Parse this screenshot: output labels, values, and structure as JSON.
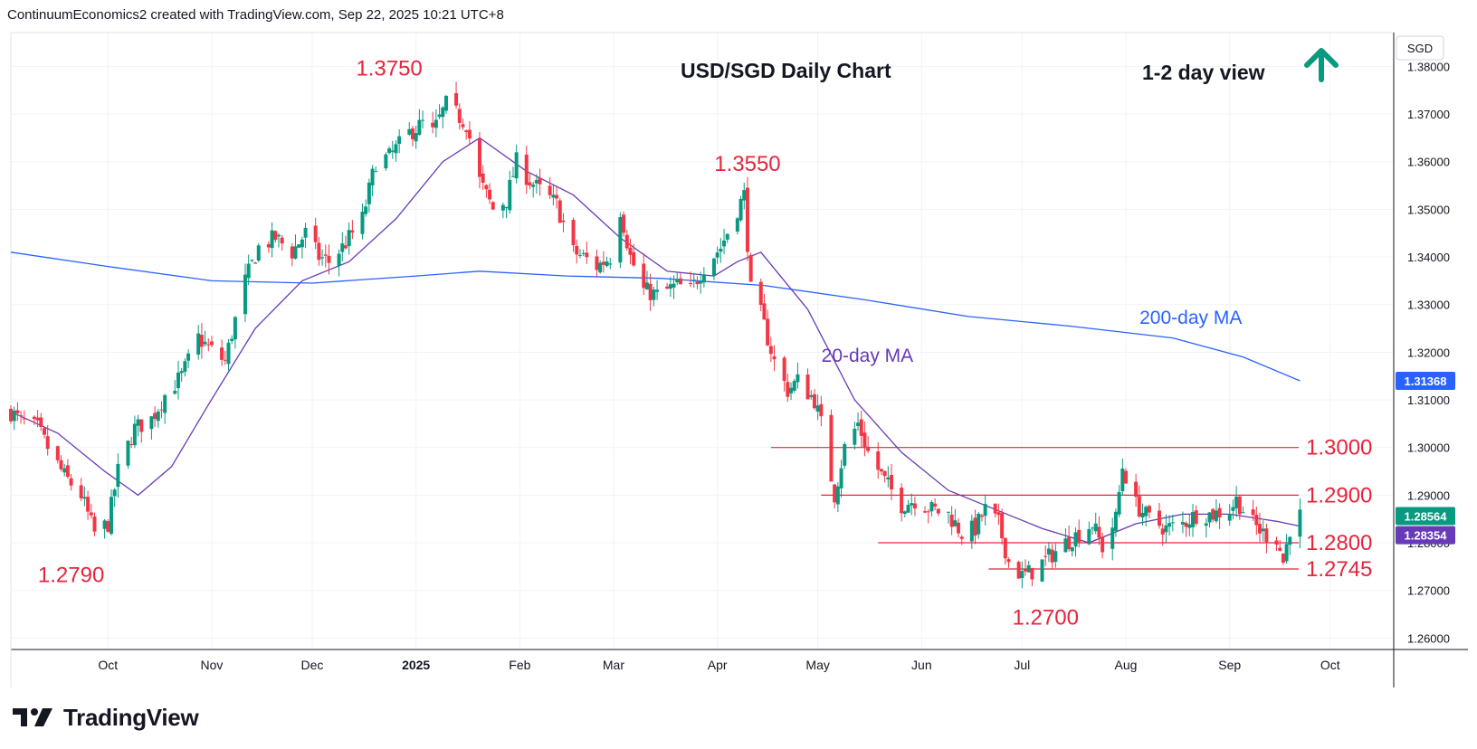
{
  "header": {
    "credit": "ContinuumEconomics2 created with TradingView.com, Sep 22, 2025 10:21 UTC+8"
  },
  "footer": {
    "brand": "TradingView"
  },
  "colors": {
    "up": "#089981",
    "down": "#f23645",
    "ma20": "#673ab7",
    "ma200": "#2962ff",
    "level": "#e8233c",
    "arrow": "#089981"
  },
  "chart_data": {
    "type": "candlestick",
    "title": "USD/SGD Daily Chart",
    "view_label": "1-2 day view",
    "view_arrow": "up-arrow",
    "currency": "SGD",
    "ylim": [
      1.2576,
      1.3871
    ],
    "y_ticks": [
      "1.38000",
      "1.37000",
      "1.36000",
      "1.35000",
      "1.34000",
      "1.33000",
      "1.32000",
      "1.31000",
      "1.30000",
      "1.29000",
      "1.28000",
      "1.27000",
      "1.26000"
    ],
    "x_ticks": [
      {
        "label": "Oct",
        "date": "2024-10-01"
      },
      {
        "label": "Nov",
        "date": "2024-11-01"
      },
      {
        "label": "Dec",
        "date": "2024-12-01"
      },
      {
        "label": "2025",
        "date": "2025-01-01",
        "bold": true
      },
      {
        "label": "Feb",
        "date": "2025-02-01"
      },
      {
        "label": "Mar",
        "date": "2025-03-01"
      },
      {
        "label": "Apr",
        "date": "2025-04-01"
      },
      {
        "label": "May",
        "date": "2025-05-01"
      },
      {
        "label": "Jun",
        "date": "2025-06-01"
      },
      {
        "label": "Jul",
        "date": "2025-07-01"
      },
      {
        "label": "Aug",
        "date": "2025-08-01"
      },
      {
        "label": "Sep",
        "date": "2025-09-01"
      },
      {
        "label": "Oct",
        "date": "2025-10-01"
      }
    ],
    "x_range": [
      "2024-09-02",
      "2025-10-20"
    ],
    "price_path": [
      [
        "2024-09-02",
        1.3075
      ],
      [
        "2024-09-05",
        1.3055
      ],
      [
        "2024-09-10",
        1.304
      ],
      [
        "2024-09-13",
        1.3
      ],
      [
        "2024-09-18",
        1.294
      ],
      [
        "2024-09-23",
        1.29
      ],
      [
        "2024-09-27",
        1.282
      ],
      [
        "2024-10-01",
        1.284
      ],
      [
        "2024-10-04",
        1.295
      ],
      [
        "2024-10-09",
        1.304
      ],
      [
        "2024-10-14",
        1.306
      ],
      [
        "2024-10-18",
        1.311
      ],
      [
        "2024-10-23",
        1.315
      ],
      [
        "2024-10-28",
        1.323
      ],
      [
        "2024-10-31",
        1.321
      ],
      [
        "2024-11-05",
        1.318
      ],
      [
        "2024-11-07",
        1.324
      ],
      [
        "2024-11-11",
        1.335
      ],
      [
        "2024-11-15",
        1.342
      ],
      [
        "2024-11-20",
        1.344
      ],
      [
        "2024-11-25",
        1.341
      ],
      [
        "2024-11-29",
        1.345
      ],
      [
        "2024-12-03",
        1.34
      ],
      [
        "2024-12-06",
        1.339
      ],
      [
        "2024-12-10",
        1.342
      ],
      [
        "2024-12-16",
        1.348
      ],
      [
        "2024-12-20",
        1.36
      ],
      [
        "2024-12-24",
        1.361
      ],
      [
        "2024-12-30",
        1.366
      ],
      [
        "2025-01-03",
        1.368
      ],
      [
        "2025-01-06",
        1.366
      ],
      [
        "2025-01-10",
        1.372
      ],
      [
        "2025-01-13",
        1.37
      ],
      [
        "2025-01-16",
        1.368
      ],
      [
        "2025-01-20",
        1.356
      ],
      [
        "2025-01-24",
        1.35
      ],
      [
        "2025-01-28",
        1.352
      ],
      [
        "2025-01-31",
        1.36
      ],
      [
        "2025-02-04",
        1.356
      ],
      [
        "2025-02-07",
        1.354
      ],
      [
        "2025-02-12",
        1.351
      ],
      [
        "2025-02-17",
        1.341
      ],
      [
        "2025-02-20",
        1.34
      ],
      [
        "2025-02-24",
        1.338
      ],
      [
        "2025-02-28",
        1.34
      ],
      [
        "2025-03-03",
        1.35
      ],
      [
        "2025-03-06",
        1.34
      ],
      [
        "2025-03-10",
        1.333
      ],
      [
        "2025-03-14",
        1.332
      ],
      [
        "2025-03-20",
        1.334
      ],
      [
        "2025-03-24",
        1.333
      ],
      [
        "2025-03-28",
        1.338
      ],
      [
        "2025-04-02",
        1.342
      ],
      [
        "2025-04-07",
        1.35
      ],
      [
        "2025-04-09",
        1.353
      ],
      [
        "2025-04-11",
        1.333
      ],
      [
        "2025-04-14",
        1.328
      ],
      [
        "2025-04-18",
        1.318
      ],
      [
        "2025-04-22",
        1.312
      ],
      [
        "2025-04-25",
        1.314
      ],
      [
        "2025-04-30",
        1.31
      ],
      [
        "2025-05-02",
        1.305
      ],
      [
        "2025-05-06",
        1.29
      ],
      [
        "2025-05-09",
        1.3
      ],
      [
        "2025-05-13",
        1.305
      ],
      [
        "2025-05-16",
        1.299
      ],
      [
        "2025-05-21",
        1.293
      ],
      [
        "2025-05-26",
        1.288
      ],
      [
        "2025-05-30",
        1.289
      ],
      [
        "2025-06-04",
        1.287
      ],
      [
        "2025-06-09",
        1.286
      ],
      [
        "2025-06-13",
        1.282
      ],
      [
        "2025-06-17",
        1.283
      ],
      [
        "2025-06-20",
        1.287
      ],
      [
        "2025-06-24",
        1.284
      ],
      [
        "2025-06-27",
        1.276
      ],
      [
        "2025-07-01",
        1.273
      ],
      [
        "2025-07-04",
        1.274
      ],
      [
        "2025-07-09",
        1.277
      ],
      [
        "2025-07-14",
        1.28
      ],
      [
        "2025-07-18",
        1.282
      ],
      [
        "2025-07-22",
        1.284
      ],
      [
        "2025-07-25",
        1.279
      ],
      [
        "2025-07-29",
        1.285
      ],
      [
        "2025-07-31",
        1.296
      ],
      [
        "2025-08-04",
        1.288
      ],
      [
        "2025-08-08",
        1.285
      ],
      [
        "2025-08-13",
        1.283
      ],
      [
        "2025-08-18",
        1.284
      ],
      [
        "2025-08-22",
        1.286
      ],
      [
        "2025-08-27",
        1.286
      ],
      [
        "2025-09-01",
        1.287
      ],
      [
        "2025-09-03",
        1.289
      ],
      [
        "2025-09-08",
        1.284
      ],
      [
        "2025-09-11",
        1.282
      ],
      [
        "2025-09-15",
        1.281
      ],
      [
        "2025-09-17",
        1.276
      ],
      [
        "2025-09-19",
        1.283
      ],
      [
        "2025-09-22",
        1.2856
      ]
    ],
    "ma20_path": [
      [
        "2024-09-02",
        1.3075
      ],
      [
        "2024-09-16",
        1.303
      ],
      [
        "2024-09-30",
        1.295
      ],
      [
        "2024-10-10",
        1.29
      ],
      [
        "2024-10-20",
        1.296
      ],
      [
        "2024-10-31",
        1.309
      ],
      [
        "2024-11-14",
        1.325
      ],
      [
        "2024-11-28",
        1.335
      ],
      [
        "2024-12-12",
        1.339
      ],
      [
        "2024-12-26",
        1.348
      ],
      [
        "2025-01-09",
        1.36
      ],
      [
        "2025-01-20",
        1.365
      ],
      [
        "2025-02-03",
        1.358
      ],
      [
        "2025-02-17",
        1.353
      ],
      [
        "2025-03-03",
        1.344
      ],
      [
        "2025-03-17",
        1.337
      ],
      [
        "2025-03-31",
        1.336
      ],
      [
        "2025-04-07",
        1.339
      ],
      [
        "2025-04-14",
        1.341
      ],
      [
        "2025-04-28",
        1.329
      ],
      [
        "2025-05-12",
        1.31
      ],
      [
        "2025-05-26",
        1.299
      ],
      [
        "2025-06-09",
        1.291
      ],
      [
        "2025-06-23",
        1.287
      ],
      [
        "2025-07-07",
        1.283
      ],
      [
        "2025-07-21",
        1.28
      ],
      [
        "2025-08-04",
        1.284
      ],
      [
        "2025-08-18",
        1.286
      ],
      [
        "2025-09-01",
        1.286
      ],
      [
        "2025-09-15",
        1.2845
      ],
      [
        "2025-09-22",
        1.2835
      ]
    ],
    "ma200_path": [
      [
        "2024-09-02",
        1.341
      ],
      [
        "2024-10-01",
        1.338
      ],
      [
        "2024-11-01",
        1.335
      ],
      [
        "2024-12-01",
        1.3345
      ],
      [
        "2025-01-01",
        1.336
      ],
      [
        "2025-01-20",
        1.337
      ],
      [
        "2025-02-15",
        1.336
      ],
      [
        "2025-03-15",
        1.3355
      ],
      [
        "2025-04-15",
        1.334
      ],
      [
        "2025-05-15",
        1.331
      ],
      [
        "2025-06-15",
        1.3275
      ],
      [
        "2025-07-15",
        1.3255
      ],
      [
        "2025-08-15",
        1.323
      ],
      [
        "2025-09-05",
        1.319
      ],
      [
        "2025-09-22",
        1.314
      ]
    ],
    "levels": [
      {
        "value": 1.3,
        "label": "1.3000",
        "start": "2025-04-17"
      },
      {
        "value": 1.29,
        "label": "1.2900",
        "start": "2025-05-02"
      },
      {
        "value": 1.28,
        "label": "1.2800",
        "start": "2025-05-19"
      },
      {
        "value": 1.2745,
        "label": "1.2745",
        "start": "2025-06-21"
      }
    ],
    "annotations": [
      {
        "text": "1.3750",
        "date": "2024-12-24",
        "value": 1.375,
        "pos": "above"
      },
      {
        "text": "1.3550",
        "date": "2025-04-10",
        "value": 1.355,
        "pos": "above"
      },
      {
        "text": "1.2790",
        "date": "2024-09-20",
        "value": 1.279,
        "pos": "below"
      },
      {
        "text": "1.2700",
        "date": "2025-07-08",
        "value": 1.27,
        "pos": "below"
      }
    ],
    "series_labels": [
      {
        "text": "20-day MA",
        "series": "ma20"
      },
      {
        "text": "200-day MA",
        "series": "ma200"
      }
    ],
    "last_values": [
      {
        "text": "1.31368",
        "series": "ma200"
      },
      {
        "text": "1.28564",
        "series": "price"
      },
      {
        "text": "1.28354",
        "series": "ma20"
      }
    ]
  }
}
